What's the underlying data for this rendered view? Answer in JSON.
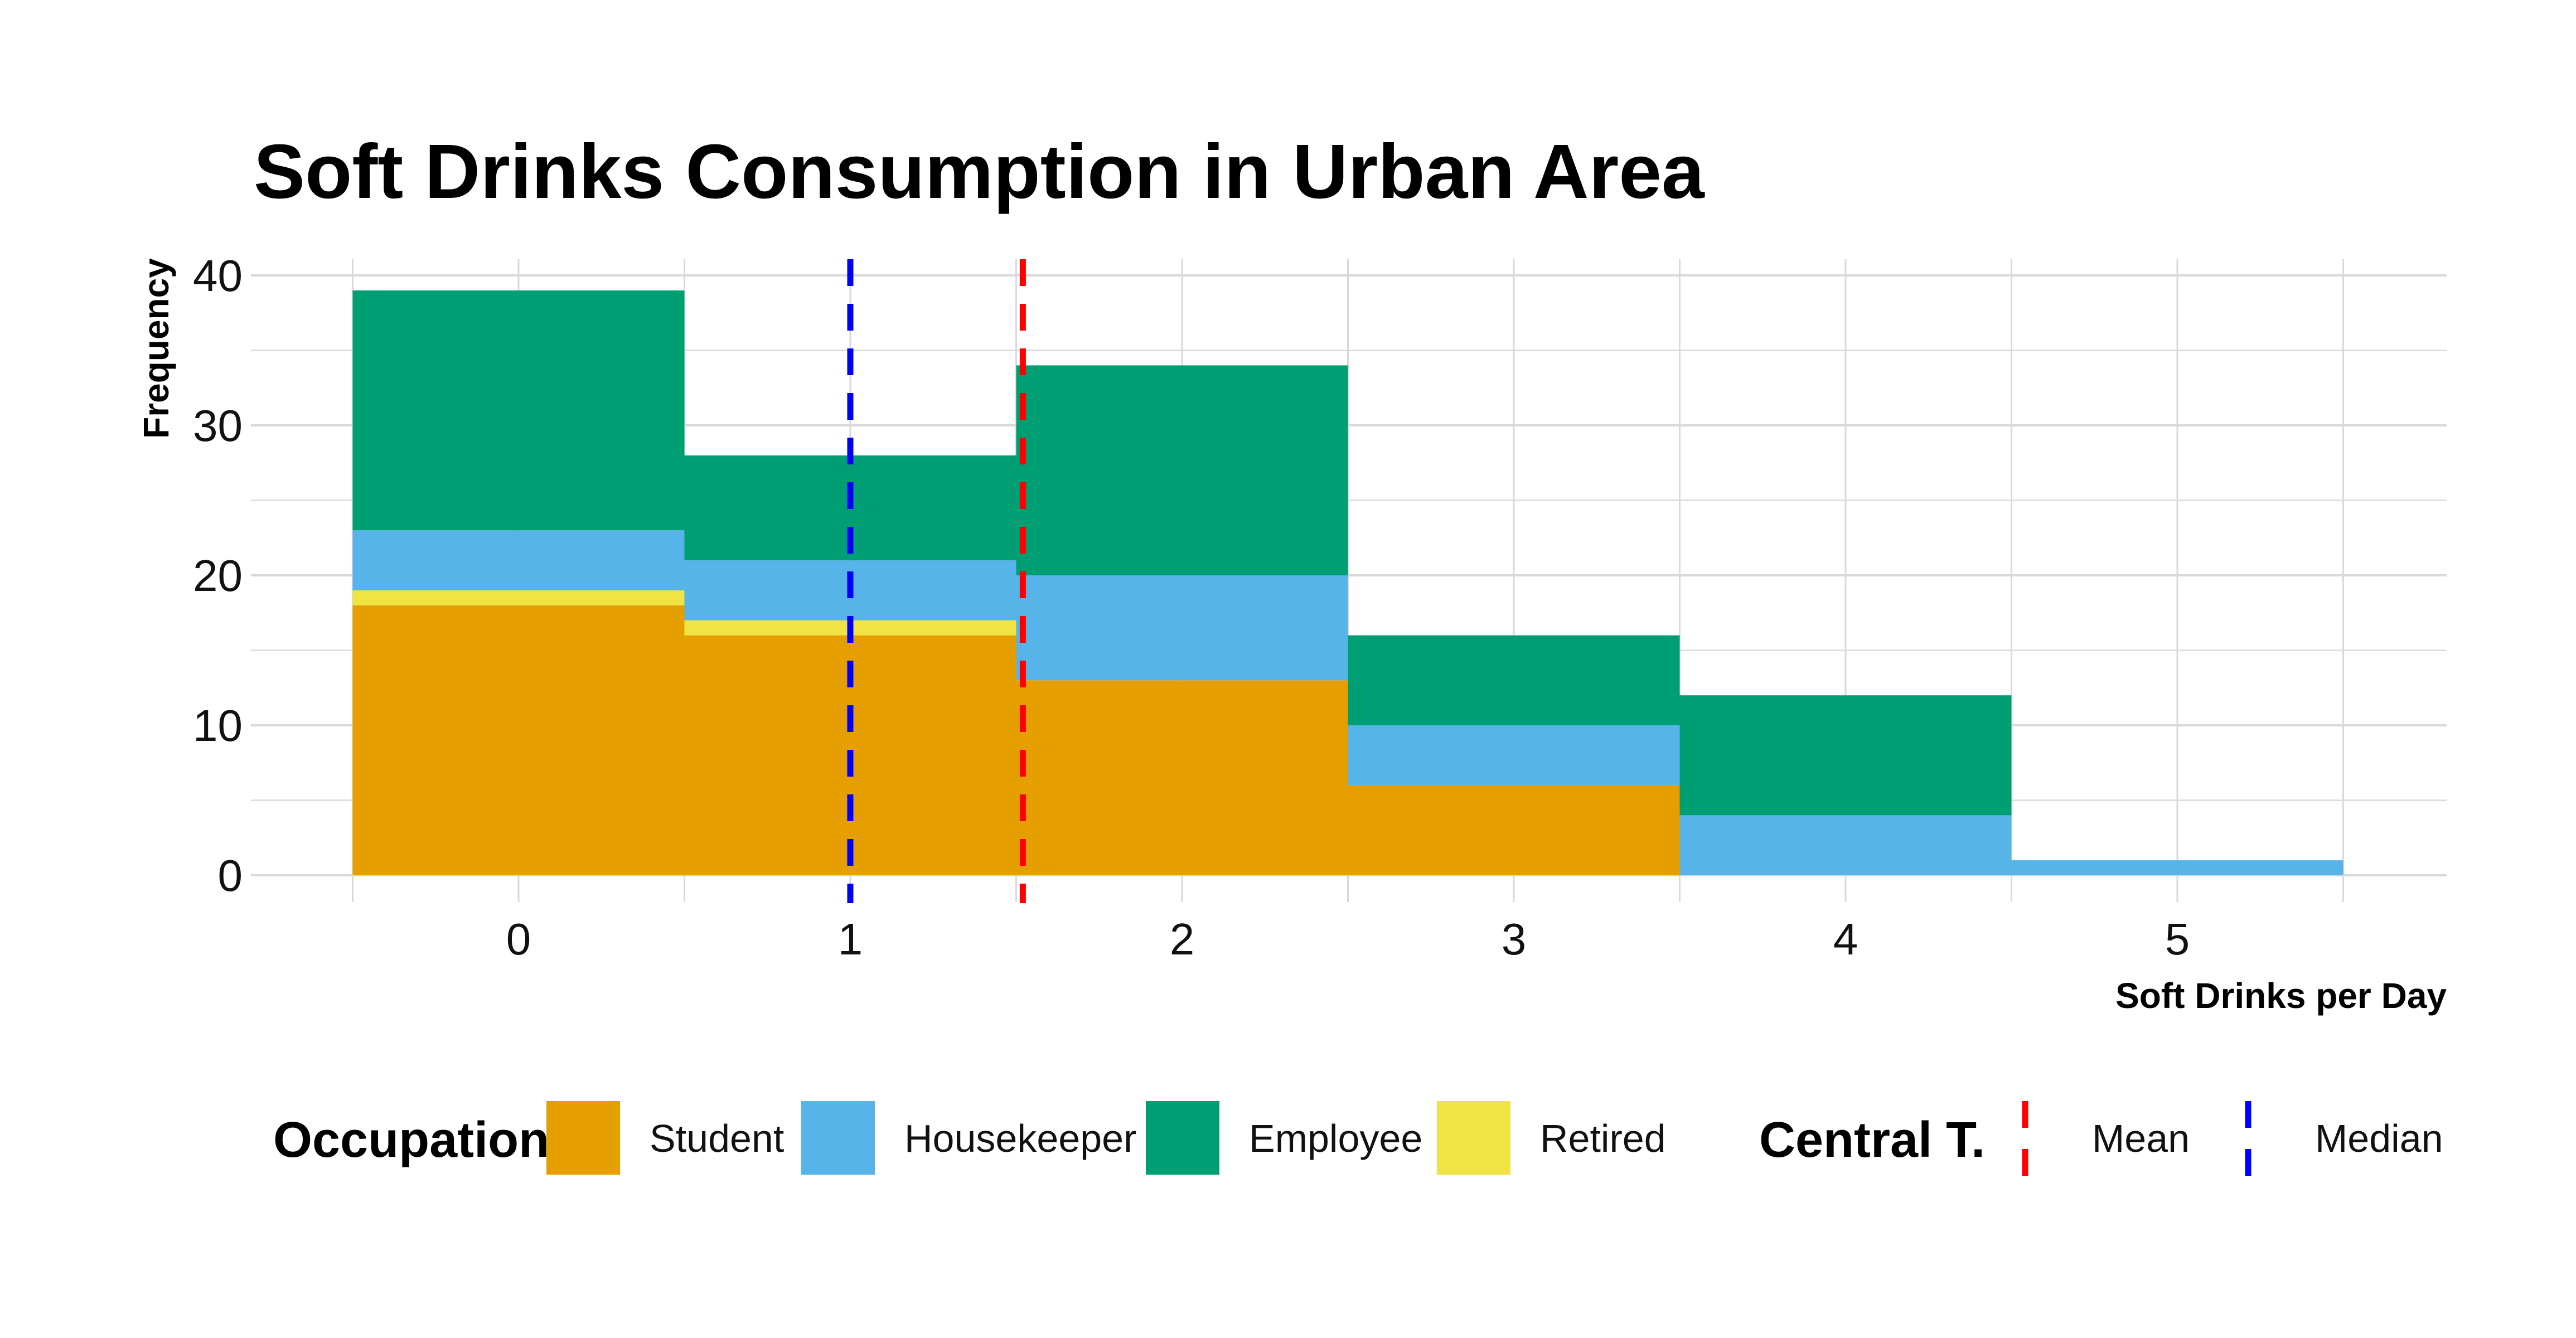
{
  "chart_data": {
    "type": "bar",
    "title": "Soft Drinks Consumption in Urban Area",
    "xlabel": "Soft Drinks per Day",
    "ylabel": "Frequency",
    "categories": [
      "0",
      "1",
      "2",
      "3",
      "4",
      "5"
    ],
    "x_values": [
      0,
      1,
      2,
      3,
      4,
      5
    ],
    "ylim": [
      0,
      40
    ],
    "y_ticks": [
      0,
      10,
      20,
      30,
      40
    ],
    "stacked": true,
    "grid": true,
    "series": [
      {
        "name": "Student",
        "color": "#E69F00",
        "values": [
          18,
          16,
          13,
          6,
          0,
          0
        ]
      },
      {
        "name": "Retired",
        "color": "#F0E442",
        "values": [
          1,
          1,
          0,
          0,
          0,
          0
        ]
      },
      {
        "name": "Housekeeper",
        "color": "#56B4E9",
        "values": [
          4,
          4,
          7,
          4,
          4,
          1
        ]
      },
      {
        "name": "Employee",
        "color": "#009E73",
        "values": [
          16,
          7,
          14,
          6,
          8,
          0
        ]
      }
    ],
    "reference_lines": [
      {
        "name": "Mean",
        "x": 1.52,
        "color": "#FF0000",
        "style": "dashed"
      },
      {
        "name": "Median",
        "x": 1.0,
        "color": "#0000FF",
        "style": "dashed"
      }
    ],
    "legend": {
      "placement": "bottom",
      "fill_title": "Occupation",
      "fill_entries": [
        {
          "label": "Student",
          "color": "#E69F00"
        },
        {
          "label": "Housekeeper",
          "color": "#56B4E9"
        },
        {
          "label": "Employee",
          "color": "#009E73"
        },
        {
          "label": "Retired",
          "color": "#F0E442"
        }
      ],
      "line_title": "Central T.",
      "line_entries": [
        {
          "label": "Mean",
          "color": "#FF0000"
        },
        {
          "label": "Median",
          "color": "#0000FF"
        }
      ]
    }
  }
}
